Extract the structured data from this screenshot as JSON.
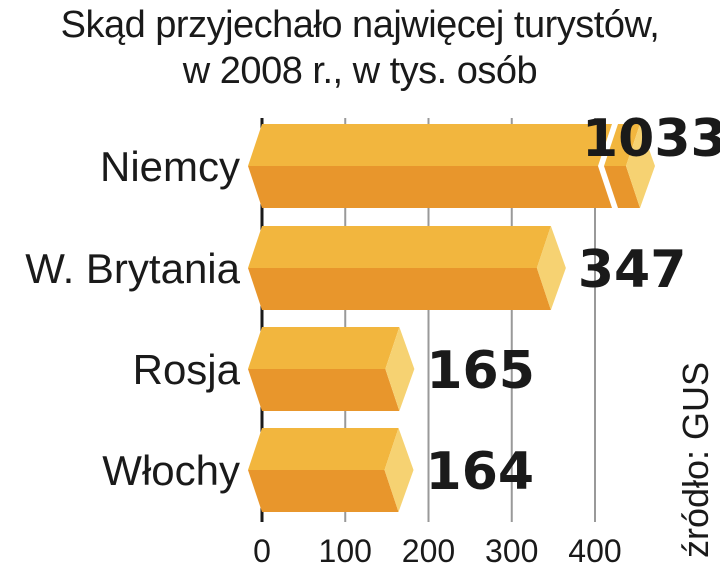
{
  "chart_data": {
    "type": "bar",
    "title_line1": "Skąd przyjechało najwięcej turystów,",
    "title_line2": "w 2008 r., w tys. osób",
    "categories": [
      "Niemcy",
      "W. Brytania",
      "Rosja",
      "Włochy"
    ],
    "values": [
      1033,
      347,
      165,
      164
    ],
    "value_labels": [
      "1033",
      "347",
      "165",
      "164"
    ],
    "broken_axis_category": "Niemcy",
    "xlim": [
      0,
      400
    ],
    "xticks": [
      "0",
      "100",
      "200",
      "300",
      "400"
    ],
    "grid": true,
    "source": "źródło: GUS",
    "colors": {
      "top": "#f2b63e",
      "bottom": "#e8962c",
      "cap": "#f6d272",
      "grid": "#999999"
    }
  }
}
